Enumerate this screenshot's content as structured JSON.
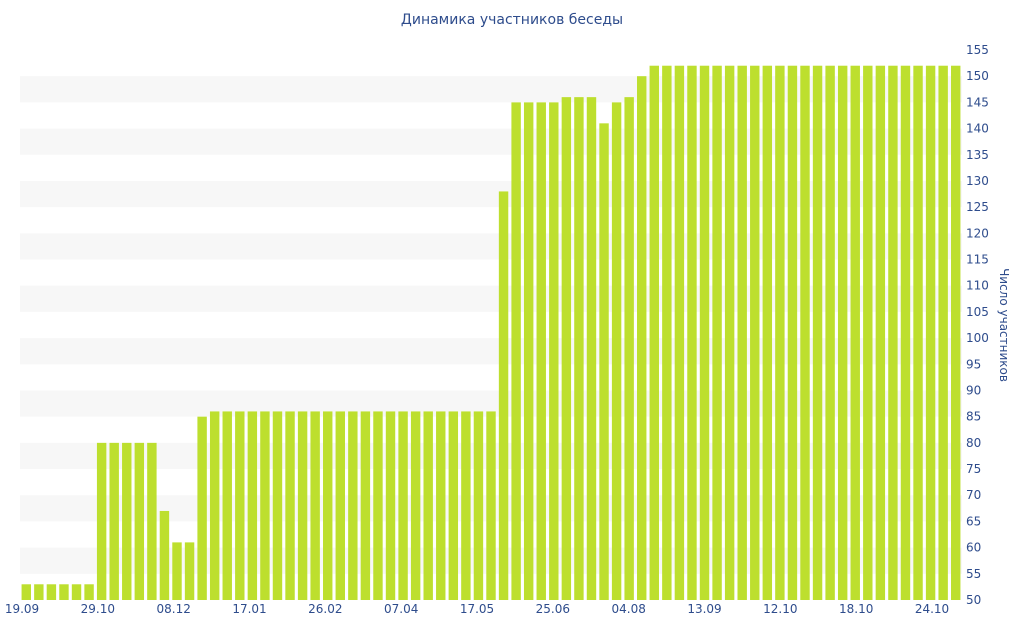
{
  "chart_data": {
    "type": "bar",
    "title": "Динамика участников беседы",
    "ylabel": "Число участников",
    "xlabel": "",
    "ylim": [
      50,
      155
    ],
    "yticks": [
      50,
      55,
      60,
      65,
      70,
      75,
      80,
      85,
      90,
      95,
      100,
      105,
      110,
      115,
      120,
      125,
      130,
      135,
      140,
      145,
      150,
      155
    ],
    "xtick_labels": [
      "19.09",
      "29.10",
      "08.12",
      "17.01",
      "26.02",
      "07.04",
      "17.05",
      "25.06",
      "04.08",
      "13.09",
      "12.10",
      "18.10",
      "24.10"
    ],
    "values": [
      53,
      53,
      53,
      53,
      53,
      53,
      80,
      80,
      80,
      80,
      80,
      67,
      61,
      61,
      85,
      86,
      86,
      86,
      86,
      86,
      86,
      86,
      86,
      86,
      86,
      86,
      86,
      86,
      86,
      86,
      86,
      86,
      86,
      86,
      86,
      86,
      86,
      86,
      128,
      145,
      145,
      145,
      145,
      146,
      146,
      146,
      141,
      145,
      146,
      150,
      152,
      152,
      152,
      152,
      152,
      152,
      152,
      152,
      152,
      152,
      152,
      152,
      152,
      152,
      152,
      152,
      152,
      152,
      152,
      152,
      152,
      152,
      152,
      152,
      152
    ],
    "bar_color": "#bddf2e",
    "band_color": "#f7f7f7",
    "grid": "horizontal bands",
    "legend": "none"
  }
}
